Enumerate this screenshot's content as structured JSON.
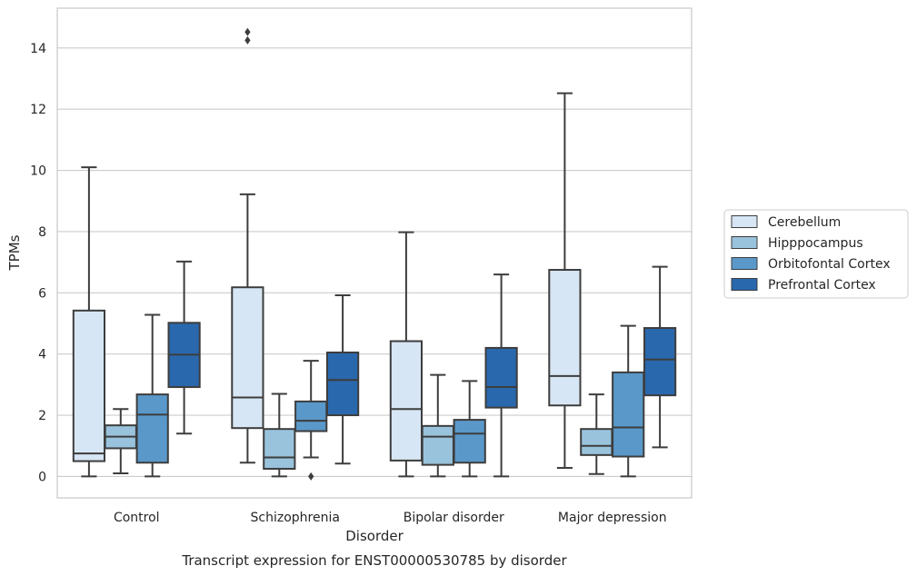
{
  "chart_data": {
    "type": "box",
    "xlabel": "Disorder",
    "ylabel": "TPMs",
    "caption": "Transcript expression for ENST00000530785 by disorder",
    "categories": [
      "Control",
      "Schizophrenia",
      "Bipolar disorder",
      "Major depression"
    ],
    "ylim": [
      -0.7,
      15.3
    ],
    "yticks": [
      0,
      2,
      4,
      6,
      8,
      10,
      12,
      14
    ],
    "grid": true,
    "legend_position": "right",
    "series": [
      {
        "name": "Cerebellum",
        "color": "#d7e6f4",
        "boxes": [
          {
            "whisker_low": 0.0,
            "q1": 0.5,
            "median": 0.75,
            "q3": 5.42,
            "whisker_high": 10.1,
            "outliers": []
          },
          {
            "whisker_low": 0.45,
            "q1": 1.58,
            "median": 2.58,
            "q3": 6.18,
            "whisker_high": 9.22,
            "outliers": [
              14.25,
              14.52
            ]
          },
          {
            "whisker_low": 0.0,
            "q1": 0.52,
            "median": 2.2,
            "q3": 4.42,
            "whisker_high": 7.98,
            "outliers": []
          },
          {
            "whisker_low": 0.28,
            "q1": 2.32,
            "median": 3.28,
            "q3": 6.75,
            "whisker_high": 12.52,
            "outliers": []
          }
        ]
      },
      {
        "name": "Hipppocampus",
        "color": "#99c3dc",
        "boxes": [
          {
            "whisker_low": 0.1,
            "q1": 0.92,
            "median": 1.3,
            "q3": 1.67,
            "whisker_high": 2.2,
            "outliers": []
          },
          {
            "whisker_low": 0.0,
            "q1": 0.25,
            "median": 0.62,
            "q3": 1.55,
            "whisker_high": 2.7,
            "outliers": []
          },
          {
            "whisker_low": 0.0,
            "q1": 0.38,
            "median": 1.3,
            "q3": 1.65,
            "whisker_high": 3.32,
            "outliers": []
          },
          {
            "whisker_low": 0.08,
            "q1": 0.7,
            "median": 1.0,
            "q3": 1.55,
            "whisker_high": 2.68,
            "outliers": []
          }
        ]
      },
      {
        "name": "Orbitofontal Cortex",
        "color": "#5a98c9",
        "boxes": [
          {
            "whisker_low": 0.0,
            "q1": 0.45,
            "median": 2.02,
            "q3": 2.68,
            "whisker_high": 5.28,
            "outliers": []
          },
          {
            "whisker_low": 0.62,
            "q1": 1.48,
            "median": 1.82,
            "q3": 2.45,
            "whisker_high": 3.78,
            "outliers": [
              0.0
            ]
          },
          {
            "whisker_low": 0.0,
            "q1": 0.45,
            "median": 1.4,
            "q3": 1.85,
            "whisker_high": 3.12,
            "outliers": []
          },
          {
            "whisker_low": 0.0,
            "q1": 0.65,
            "median": 1.6,
            "q3": 3.4,
            "whisker_high": 4.92,
            "outliers": []
          }
        ]
      },
      {
        "name": "Prefrontal Cortex",
        "color": "#2a68ad",
        "boxes": [
          {
            "whisker_low": 1.4,
            "q1": 2.92,
            "median": 3.98,
            "q3": 5.02,
            "whisker_high": 7.02,
            "outliers": []
          },
          {
            "whisker_low": 0.42,
            "q1": 2.0,
            "median": 3.15,
            "q3": 4.05,
            "whisker_high": 5.92,
            "outliers": []
          },
          {
            "whisker_low": 0.0,
            "q1": 2.25,
            "median": 2.92,
            "q3": 4.2,
            "whisker_high": 6.6,
            "outliers": []
          },
          {
            "whisker_low": 0.95,
            "q1": 2.65,
            "median": 3.82,
            "q3": 4.85,
            "whisker_high": 6.85,
            "outliers": []
          }
        ]
      }
    ]
  }
}
